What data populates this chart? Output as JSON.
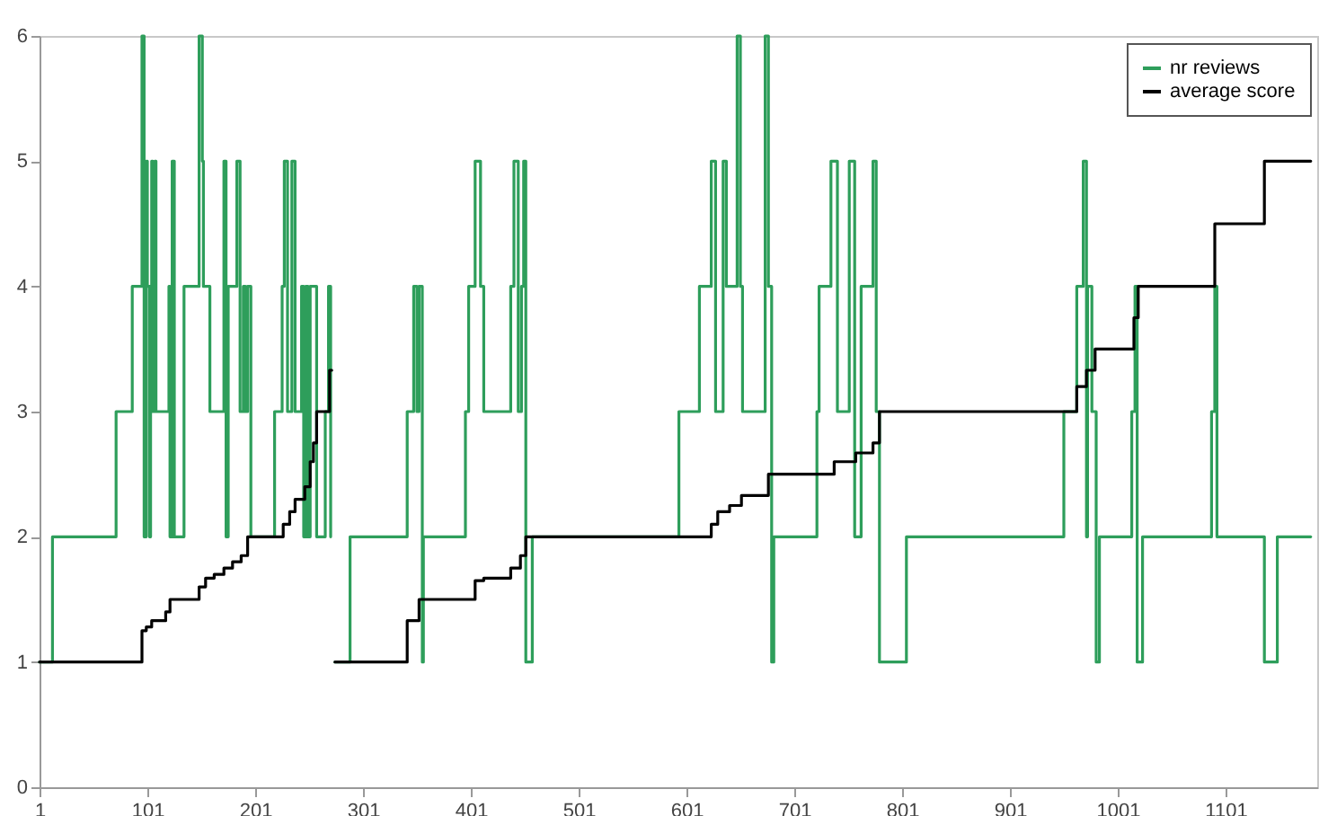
{
  "chart_data": {
    "type": "step",
    "xlim": [
      1,
      1186
    ],
    "xticks": [
      1,
      101,
      201,
      301,
      401,
      501,
      601,
      701,
      801,
      901,
      1001,
      1101
    ],
    "ylim": [
      0,
      6
    ],
    "yticks": [
      0,
      1,
      2,
      3,
      4,
      5,
      6
    ],
    "grid": false,
    "legend": "top right",
    "marker": "none",
    "line_style": "solid",
    "series": [
      {
        "name": "nr reviews",
        "color": "#2e9e5b",
        "x": [
          1,
          13,
          72,
          87,
          96,
          98,
          100,
          101,
          103,
          104,
          105,
          106,
          108,
          109,
          121,
          122,
          124,
          126,
          135,
          149,
          152,
          153,
          159,
          172,
          174,
          176,
          184,
          187,
          190,
          192,
          194,
          197,
          219,
          226,
          228,
          231,
          235,
          238,
          244,
          246,
          248,
          250,
          252,
          258,
          266,
          269,
          271,
          273,
          275,
          289,
          342,
          348,
          351,
          353,
          356,
          357,
          396,
          399,
          405,
          410,
          413,
          438,
          441,
          445,
          448,
          450,
          452,
          458,
          594,
          613,
          624,
          628,
          635,
          638,
          648,
          651,
          653,
          674,
          677,
          680,
          682,
          722,
          724,
          735,
          741,
          752,
          757,
          763,
          774,
          777,
          780,
          805,
          951,
          963,
          969,
          972,
          973,
          977,
          981,
          984,
          1014,
          1017,
          1019,
          1024,
          1088,
          1091,
          1093,
          1137,
          1149,
          1180
        ],
        "values": [
          1,
          2,
          3,
          4,
          6,
          2,
          5,
          4,
          2,
          4,
          5,
          3,
          5,
          3,
          4,
          2,
          5,
          2,
          4,
          6,
          5,
          4,
          3,
          5,
          2,
          4,
          5,
          3,
          4,
          3,
          4,
          2,
          3,
          4,
          5,
          3,
          5,
          3,
          4,
          2,
          4,
          2,
          4,
          2,
          3,
          4,
          2,
          null,
          1,
          2,
          3,
          4,
          3,
          4,
          1,
          2,
          3,
          4,
          5,
          4,
          3,
          4,
          5,
          3,
          4,
          5,
          1,
          2,
          3,
          4,
          5,
          3,
          5,
          4,
          6,
          4,
          3,
          6,
          4,
          1,
          2,
          3,
          4,
          5,
          3,
          5,
          2,
          4,
          5,
          3,
          1,
          2,
          3,
          4,
          5,
          2,
          4,
          3,
          1,
          2,
          3,
          4,
          1,
          2,
          3,
          4,
          2,
          1,
          2,
          2
        ]
      },
      {
        "name": "average score",
        "color": "#000000",
        "x": [
          1,
          96,
          100,
          105,
          118,
          122,
          149,
          155,
          163,
          172,
          180,
          188,
          194,
          227,
          233,
          238,
          247,
          252,
          255,
          258,
          270,
          272,
          273,
          275,
          342,
          353,
          405,
          413,
          438,
          447,
          452,
          624,
          630,
          641,
          652,
          677,
          738,
          758,
          774,
          780,
          963,
          972,
          980,
          1016,
          1020,
          1091,
          1137,
          1180
        ],
        "values": [
          1,
          1.25,
          1.28,
          1.33,
          1.4,
          1.5,
          1.6,
          1.67,
          1.7,
          1.75,
          1.8,
          1.85,
          2,
          2.1,
          2.2,
          2.3,
          2.4,
          2.6,
          2.75,
          3,
          3.33,
          3.33,
          null,
          1,
          1.33,
          1.5,
          1.65,
          1.67,
          1.75,
          1.85,
          2,
          2.1,
          2.2,
          2.25,
          2.33,
          2.5,
          2.6,
          2.67,
          2.75,
          3,
          3.2,
          3.33,
          3.5,
          3.75,
          4,
          4.5,
          5,
          5
        ]
      }
    ]
  }
}
